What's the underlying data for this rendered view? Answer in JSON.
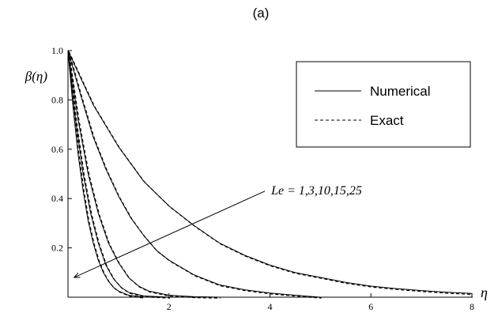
{
  "panel_label": "(a)",
  "chart_data": {
    "type": "line",
    "title": "(a)",
    "xlabel": "η",
    "ylabel": "β(η)",
    "xlim": [
      0,
      8
    ],
    "ylim": [
      0,
      1.0
    ],
    "x_ticks": [
      2,
      4,
      6,
      8
    ],
    "y_ticks": [
      0.2,
      0.4,
      0.6,
      0.8,
      1.0
    ],
    "x_tick_labels": [
      "2",
      "4",
      "6",
      "8"
    ],
    "y_tick_labels": [
      "0.2",
      "0.4",
      "0.6",
      "0.8",
      "1.0"
    ],
    "grid": false,
    "legend": {
      "position": "top-right",
      "entries": [
        {
          "label": "Numerical",
          "style": "solid"
        },
        {
          "label": "Exact",
          "style": "dashed"
        }
      ]
    },
    "annotation": {
      "text": "Le = 1,3,10,15,25",
      "arrow_from": [
        3.9,
        0.43
      ],
      "arrow_to": [
        0.12,
        0.08
      ]
    },
    "series": [
      {
        "Le": 1,
        "x": [
          0,
          0.5,
          1,
          1.5,
          2,
          2.5,
          3,
          3.5,
          4,
          4.5,
          5,
          5.5,
          6,
          6.5,
          7,
          7.5,
          8
        ],
        "values": [
          1.0,
          0.78,
          0.61,
          0.47,
          0.37,
          0.29,
          0.22,
          0.17,
          0.13,
          0.1,
          0.08,
          0.06,
          0.045,
          0.035,
          0.027,
          0.02,
          0.015
        ]
      },
      {
        "Le": 3,
        "x": [
          0,
          0.25,
          0.5,
          0.75,
          1,
          1.25,
          1.5,
          1.75,
          2,
          2.5,
          3,
          3.5,
          4,
          4.5,
          5
        ],
        "values": [
          1.0,
          0.82,
          0.65,
          0.52,
          0.41,
          0.32,
          0.25,
          0.19,
          0.15,
          0.09,
          0.05,
          0.03,
          0.017,
          0.008,
          0.0
        ]
      },
      {
        "Le": 10,
        "x": [
          0,
          0.2,
          0.4,
          0.6,
          0.8,
          1.0,
          1.2,
          1.4,
          1.6,
          2.0,
          2.5,
          3.0
        ],
        "values": [
          1.0,
          0.72,
          0.5,
          0.34,
          0.22,
          0.14,
          0.08,
          0.045,
          0.025,
          0.008,
          0.002,
          0.0
        ]
      },
      {
        "Le": 15,
        "x": [
          0,
          0.15,
          0.3,
          0.45,
          0.6,
          0.75,
          0.9,
          1.05,
          1.2,
          1.5,
          2.0
        ],
        "values": [
          1.0,
          0.72,
          0.5,
          0.34,
          0.22,
          0.13,
          0.075,
          0.04,
          0.02,
          0.005,
          0.0
        ]
      },
      {
        "Le": 25,
        "x": [
          0,
          0.1,
          0.2,
          0.3,
          0.4,
          0.5,
          0.6,
          0.7,
          0.8,
          0.9,
          1.0,
          1.2,
          1.5
        ],
        "values": [
          1.0,
          0.77,
          0.58,
          0.43,
          0.31,
          0.22,
          0.15,
          0.1,
          0.065,
          0.04,
          0.025,
          0.008,
          0.0
        ]
      }
    ]
  }
}
